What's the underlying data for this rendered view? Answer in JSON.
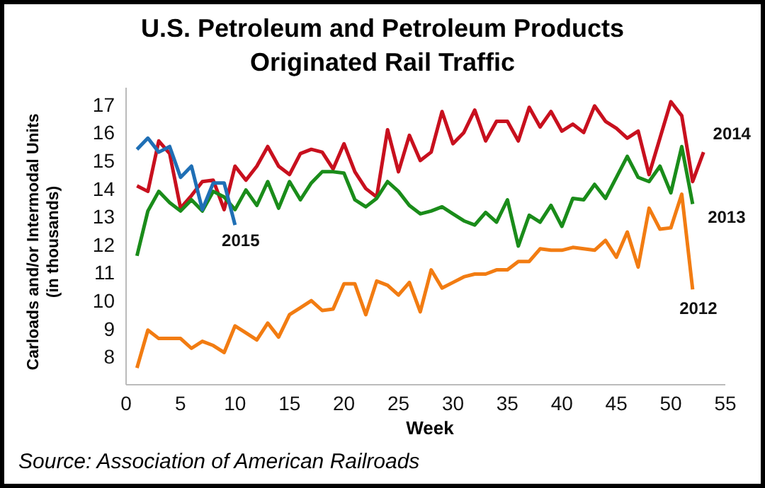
{
  "chart_data": {
    "type": "line",
    "title": "U.S. Petroleum and Petroleum Products Originated Rail Traffic",
    "xlabel": "Week",
    "ylabel": "Carloads and/or Intermodal Units (in thousands)",
    "annotations": [
      "Source: Association of American Railroads"
    ],
    "x": [
      1,
      2,
      3,
      4,
      5,
      6,
      7,
      8,
      9,
      10,
      11,
      12,
      13,
      14,
      15,
      16,
      17,
      18,
      19,
      20,
      21,
      22,
      23,
      24,
      25,
      26,
      27,
      28,
      29,
      30,
      31,
      32,
      33,
      34,
      35,
      36,
      37,
      38,
      39,
      40,
      41,
      42,
      43,
      44,
      45,
      46,
      47,
      48,
      49,
      50,
      51,
      52,
      53
    ],
    "series": [
      {
        "name": "2014",
        "color": "#c8101e",
        "values": [
          14.1,
          13.9,
          15.7,
          15.25,
          13.3,
          13.75,
          14.25,
          14.3,
          13.25,
          14.8,
          14.3,
          14.8,
          15.5,
          14.8,
          14.5,
          15.25,
          15.4,
          15.3,
          14.7,
          15.6,
          14.6,
          14.0,
          13.7,
          16.1,
          14.6,
          15.9,
          15.0,
          15.3,
          16.75,
          15.6,
          16.0,
          16.8,
          15.7,
          16.4,
          16.4,
          15.7,
          16.9,
          16.2,
          16.75,
          16.05,
          16.3,
          16.0,
          16.95,
          16.4,
          16.15,
          15.8,
          16.05,
          14.5,
          15.8,
          17.1,
          16.6,
          14.25,
          15.3
        ]
      },
      {
        "name": "2013",
        "color": "#1a8c1a",
        "values": [
          11.6,
          13.2,
          13.9,
          13.5,
          13.2,
          13.6,
          13.2,
          13.9,
          13.7,
          13.25,
          13.95,
          13.4,
          14.25,
          13.3,
          14.25,
          13.6,
          14.2,
          14.6,
          14.6,
          14.55,
          13.6,
          13.35,
          13.65,
          14.25,
          13.9,
          13.4,
          13.1,
          13.2,
          13.35,
          13.1,
          12.85,
          12.7,
          13.15,
          12.8,
          13.6,
          11.95,
          13.05,
          12.8,
          13.4,
          12.65,
          13.65,
          13.6,
          14.15,
          13.65,
          14.4,
          15.15,
          14.4,
          14.25,
          14.8,
          13.85,
          15.5,
          13.45,
          null
        ]
      },
      {
        "name": "2012",
        "color": "#f27c12",
        "values": [
          7.6,
          8.95,
          8.65,
          8.65,
          8.65,
          8.3,
          8.55,
          8.4,
          8.15,
          9.1,
          8.85,
          8.6,
          9.2,
          8.7,
          9.5,
          9.75,
          10.0,
          9.65,
          9.7,
          10.6,
          10.6,
          9.5,
          10.7,
          10.55,
          10.2,
          10.65,
          9.6,
          11.1,
          10.45,
          10.65,
          10.85,
          10.95,
          10.95,
          11.1,
          11.1,
          11.4,
          11.4,
          11.85,
          11.8,
          11.8,
          11.9,
          11.85,
          11.8,
          12.15,
          11.55,
          12.45,
          11.2,
          13.3,
          12.55,
          12.6,
          13.8,
          10.4,
          null
        ]
      },
      {
        "name": "2015",
        "color": "#1f6fb5",
        "values": [
          15.4,
          15.8,
          15.3,
          15.5,
          14.4,
          14.8,
          13.25,
          14.2,
          14.2,
          12.7,
          null,
          null,
          null,
          null,
          null,
          null,
          null,
          null,
          null,
          null,
          null,
          null,
          null,
          null,
          null,
          null,
          null,
          null,
          null,
          null,
          null,
          null,
          null,
          null,
          null,
          null,
          null,
          null,
          null,
          null,
          null,
          null,
          null,
          null,
          null,
          null,
          null,
          null,
          null,
          null,
          null,
          null,
          null
        ]
      }
    ],
    "xlim": [
      0,
      55
    ],
    "xticks": [
      0,
      5,
      10,
      15,
      20,
      25,
      30,
      35,
      40,
      45,
      50,
      55
    ],
    "ylim": [
      7,
      17.6
    ],
    "yticks": [
      8,
      9,
      10,
      11,
      12,
      13,
      14,
      15,
      16,
      17
    ],
    "grid": false,
    "legend": false,
    "marker": "none",
    "line_style": "solid"
  }
}
